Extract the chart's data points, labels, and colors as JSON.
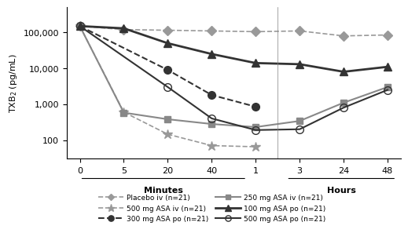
{
  "x_positions": [
    0,
    1,
    2,
    3,
    4,
    5,
    6,
    7
  ],
  "x_labels": [
    "0",
    "5",
    "20",
    "40",
    "1",
    "3",
    "24",
    "48"
  ],
  "x_section_labels": [
    [
      "Minutes",
      1.5
    ],
    [
      "Hours",
      5.5
    ]
  ],
  "minutes_span": [
    0,
    4
  ],
  "hours_span": [
    4,
    7
  ],
  "ylabel": "TXB$_2$ (pg/mL)",
  "series": [
    {
      "name": "Placebo iv (n=21)",
      "color": "#999999",
      "linestyle": "dashed",
      "marker": "D",
      "markersize": 6,
      "linewidth": 1.2,
      "fillstyle": "full",
      "values": [
        150000,
        120000,
        115000,
        110000,
        105000,
        110000,
        80000,
        85000
      ],
      "legend_linestyle": "dashed"
    },
    {
      "name": "500 mg ASA iv (n=21)",
      "color": "#999999",
      "linestyle": "dashed",
      "marker": "*",
      "markersize": 9,
      "linewidth": 1.2,
      "fillstyle": "full",
      "values": [
        150000,
        600,
        145,
        70,
        65,
        null,
        null,
        null
      ],
      "legend_linestyle": "dashed"
    },
    {
      "name": "300 mg ASA po (n=21)",
      "color": "#333333",
      "linestyle": "dashed",
      "marker": "o",
      "markersize": 7,
      "linewidth": 1.5,
      "fillstyle": "full",
      "values": [
        150000,
        null,
        9000,
        1800,
        850,
        null,
        null,
        null
      ],
      "legend_linestyle": "dashed"
    },
    {
      "name": "250 mg ASA iv (n=21)",
      "color": "#888888",
      "linestyle": "solid",
      "marker": "s",
      "markersize": 6,
      "linewidth": 1.5,
      "fillstyle": "full",
      "values": [
        150000,
        580,
        380,
        280,
        230,
        340,
        1100,
        3000
      ],
      "legend_linestyle": "solid"
    },
    {
      "name": "100 mg ASA po (n=21)",
      "color": "#333333",
      "linestyle": "solid",
      "marker": "^",
      "markersize": 7,
      "linewidth": 2.0,
      "fillstyle": "full",
      "values": [
        150000,
        130000,
        50000,
        25000,
        14000,
        13000,
        8000,
        11000
      ],
      "legend_linestyle": "solid"
    },
    {
      "name": "500 mg ASA po (n=21)",
      "color": "#333333",
      "linestyle": "solid",
      "marker": "o",
      "markersize": 7,
      "linewidth": 1.5,
      "fillstyle": "none",
      "values": [
        150000,
        null,
        3000,
        400,
        190,
        200,
        800,
        2500
      ],
      "legend_linestyle": "solid"
    }
  ],
  "ylim": [
    30,
    500000
  ],
  "yticks": [
    100,
    1000,
    10000,
    100000
  ],
  "ytick_labels": [
    "100",
    "1,000",
    "10,000",
    "100,000"
  ]
}
